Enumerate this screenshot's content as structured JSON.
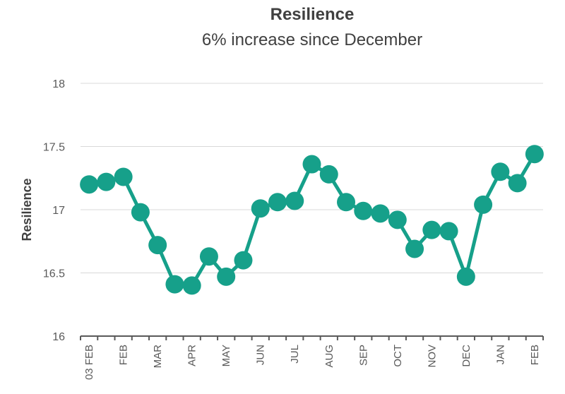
{
  "chart_data": {
    "type": "line",
    "title": "Resilience",
    "subtitle": "6% increase since December",
    "y_label": "Resilience",
    "categories": [
      "03 FEB",
      null,
      "FEB",
      null,
      "MAR",
      null,
      "APR",
      null,
      "MAY",
      null,
      "JUN",
      null,
      "JUL",
      null,
      "AUG",
      null,
      "SEP",
      null,
      "OCT",
      null,
      "NOV",
      null,
      "DEC",
      null,
      "JAN",
      null,
      "FEB"
    ],
    "series": [
      {
        "name": "Resilience",
        "color": "#16a08a",
        "values": [
          17.2,
          17.22,
          17.26,
          16.98,
          16.72,
          16.41,
          16.4,
          16.63,
          16.47,
          16.6,
          17.01,
          17.06,
          17.07,
          17.36,
          17.28,
          17.06,
          16.99,
          16.97,
          16.92,
          16.69,
          16.84,
          16.83,
          16.47,
          17.04,
          17.3,
          17.21,
          17.44
        ]
      }
    ],
    "ylim": [
      16,
      18
    ],
    "yticks": [
      16,
      {
        "value": 16.5,
        "label": "16.5"
      },
      17,
      {
        "value": 17.5,
        "label": "17.5"
      },
      18
    ],
    "grid": true
  }
}
